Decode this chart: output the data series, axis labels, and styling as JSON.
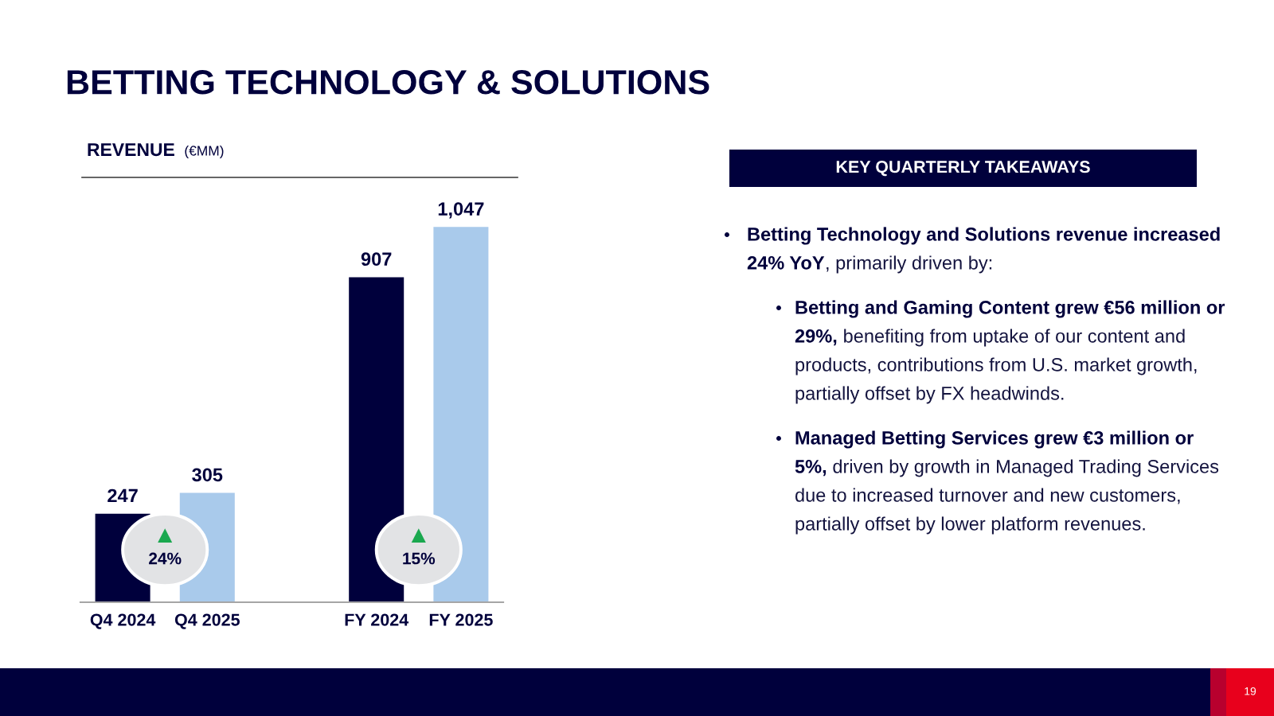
{
  "chart_data": [
    {
      "type": "bar",
      "title": "BETTING TECHNOLOGY & SOLUTIONS",
      "subtitle": "REVENUE",
      "ylabel": "(€MM)",
      "categories": [
        "Q4 2024",
        "Q4 2025",
        null,
        "FY 2024",
        "FY 2025"
      ],
      "values": [
        247,
        305,
        null,
        907,
        1047
      ],
      "colors": [
        "#00003c",
        "#a9caeb",
        null,
        "#00003c",
        "#a9caeb"
      ],
      "value_labels": [
        "247",
        "305",
        null,
        "907",
        "1,047"
      ],
      "annotations": [
        "24%",
        "15%"
      ]
    },
    {
      "type": "other",
      "title": "KEY QUARTERLY TAKEAWAYS",
      "annotations": [
        "Betting Technology and Solutions revenue increased 24% YoY",
        ", primarily driven by:",
        "Betting and Gaming Content grew €56 million or 29%,",
        "benefiting from uptake of our content and products, contributions from U.S. market growth, partially offset by FX headwinds.",
        "Managed Betting Services grew €3 million or 5%,",
        "driven by growth in Managed Trading Services due to increased turnover and new customers, partially offset by lower platform revenues.",
        "19"
      ]
    }
  ]
}
